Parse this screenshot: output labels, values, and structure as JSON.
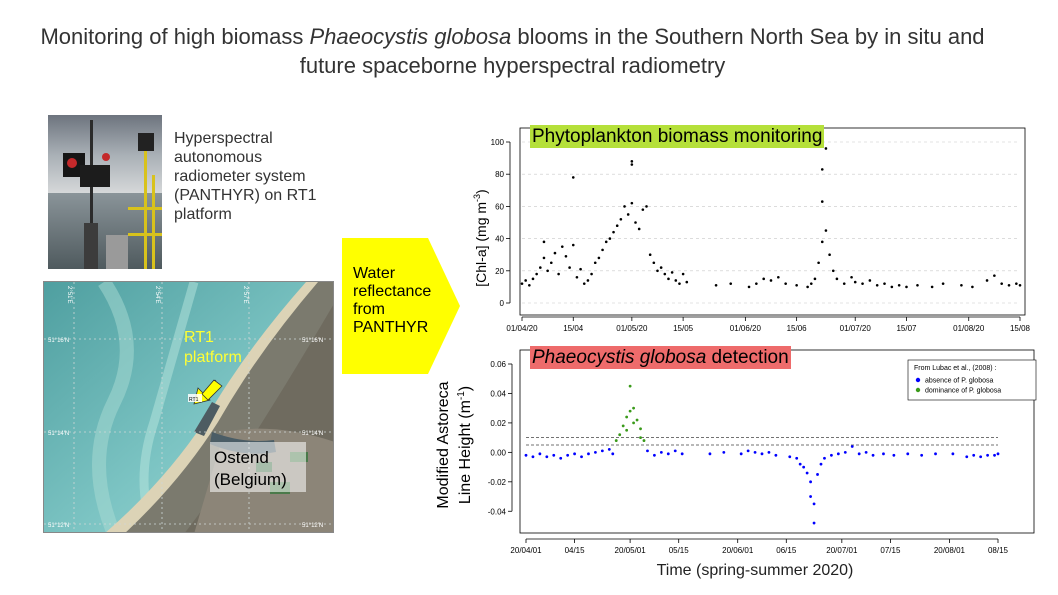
{
  "title": {
    "pre": "Monitoring of high biomass ",
    "italic": "Phaeocystis globosa",
    "post": " blooms in the Southern North Sea by in situ and future spaceborne hyperspectral radiometry"
  },
  "photo_caption": "Hyperspectral autonomous radiometer system (PANTHYR) on RT1 platform",
  "map": {
    "platform_label_1": "RT1",
    "platform_label_2": "platform",
    "city_label_1": "Ostend",
    "city_label_2": "(Belgium)",
    "rt1_marker": "RT1",
    "lon_labels": [
      "2°51'E",
      "2°54'E",
      "2°57'E"
    ],
    "lat_labels_left": [
      "51°16'N",
      "51°14'N",
      "51°12'N"
    ],
    "lat_labels_right": [
      "51°16'N",
      "51°14'N",
      "51°12'N"
    ]
  },
  "arrow_text": "Water reflectance from PANTHYR",
  "colors": {
    "chart1_title_bg": "#b5e03a",
    "chart2_title_bg": "#ee6b6b",
    "arrow": "#ffff00",
    "absence": "#0000ff",
    "dominance": "#3a9a1a"
  },
  "chart_data": [
    {
      "type": "scatter",
      "title": "Phytoplankton biomass monitoring",
      "ylabel": "[Chl-a] (mg m-3)",
      "ylabel_main": "[Chl-a] (mg m",
      "ylabel_sup": "-3",
      "ylabel_end": ")",
      "xlabel": "",
      "ylim": [
        0,
        100
      ],
      "yticks": [
        0,
        20,
        40,
        60,
        80,
        100
      ],
      "xlim": [
        "2020-04-01",
        "2020-08-15"
      ],
      "xticks": [
        {
          "x": "2020-04-01",
          "label": "01/04/20"
        },
        {
          "x": "2020-04-15",
          "label": "15/04"
        },
        {
          "x": "2020-05-01",
          "label": "01/05/20"
        },
        {
          "x": "2020-05-15",
          "label": "15/05"
        },
        {
          "x": "2020-06-01",
          "label": "01/06/20"
        },
        {
          "x": "2020-06-15",
          "label": "15/06"
        },
        {
          "x": "2020-07-01",
          "label": "01/07/20"
        },
        {
          "x": "2020-07-15",
          "label": "15/07"
        },
        {
          "x": "2020-08-01",
          "label": "01/08/20"
        },
        {
          "x": "2020-08-15",
          "label": "15/08"
        }
      ],
      "grid": true,
      "series": [
        {
          "color": "#000000",
          "points": [
            [
              "2020-04-01",
              12
            ],
            [
              "2020-04-02",
              14
            ],
            [
              "2020-04-03",
              11
            ],
            [
              "2020-04-04",
              15
            ],
            [
              "2020-04-05",
              18
            ],
            [
              "2020-04-06",
              22
            ],
            [
              "2020-04-07",
              28
            ],
            [
              "2020-04-07",
              38
            ],
            [
              "2020-04-08",
              20
            ],
            [
              "2020-04-09",
              25
            ],
            [
              "2020-04-10",
              31
            ],
            [
              "2020-04-11",
              18
            ],
            [
              "2020-04-12",
              35
            ],
            [
              "2020-04-13",
              29
            ],
            [
              "2020-04-14",
              22
            ],
            [
              "2020-04-15",
              36
            ],
            [
              "2020-04-15",
              78
            ],
            [
              "2020-04-16",
              16
            ],
            [
              "2020-04-17",
              21
            ],
            [
              "2020-04-18",
              12
            ],
            [
              "2020-04-19",
              14
            ],
            [
              "2020-04-20",
              18
            ],
            [
              "2020-04-21",
              25
            ],
            [
              "2020-04-22",
              28
            ],
            [
              "2020-04-23",
              33
            ],
            [
              "2020-04-24",
              38
            ],
            [
              "2020-04-25",
              40
            ],
            [
              "2020-04-26",
              44
            ],
            [
              "2020-04-27",
              48
            ],
            [
              "2020-04-28",
              52
            ],
            [
              "2020-04-29",
              60
            ],
            [
              "2020-04-30",
              55
            ],
            [
              "2020-05-01",
              62
            ],
            [
              "2020-05-01",
              86
            ],
            [
              "2020-05-01",
              88
            ],
            [
              "2020-05-02",
              50
            ],
            [
              "2020-05-03",
              46
            ],
            [
              "2020-05-04",
              58
            ],
            [
              "2020-05-05",
              60
            ],
            [
              "2020-05-06",
              30
            ],
            [
              "2020-05-07",
              25
            ],
            [
              "2020-05-08",
              20
            ],
            [
              "2020-05-09",
              22
            ],
            [
              "2020-05-10",
              18
            ],
            [
              "2020-05-11",
              15
            ],
            [
              "2020-05-12",
              19
            ],
            [
              "2020-05-13",
              14
            ],
            [
              "2020-05-14",
              12
            ],
            [
              "2020-05-15",
              18
            ],
            [
              "2020-05-16",
              13
            ],
            [
              "2020-05-24",
              11
            ],
            [
              "2020-05-28",
              12
            ],
            [
              "2020-06-02",
              10
            ],
            [
              "2020-06-04",
              12
            ],
            [
              "2020-06-06",
              15
            ],
            [
              "2020-06-08",
              14
            ],
            [
              "2020-06-10",
              16
            ],
            [
              "2020-06-12",
              12
            ],
            [
              "2020-06-15",
              11
            ],
            [
              "2020-06-18",
              10
            ],
            [
              "2020-06-19",
              12
            ],
            [
              "2020-06-20",
              15
            ],
            [
              "2020-06-21",
              25
            ],
            [
              "2020-06-22",
              38
            ],
            [
              "2020-06-22",
              63
            ],
            [
              "2020-06-22",
              83
            ],
            [
              "2020-06-23",
              96
            ],
            [
              "2020-06-23",
              45
            ],
            [
              "2020-06-24",
              30
            ],
            [
              "2020-06-25",
              20
            ],
            [
              "2020-06-26",
              15
            ],
            [
              "2020-06-28",
              12
            ],
            [
              "2020-06-30",
              16
            ],
            [
              "2020-07-01",
              13
            ],
            [
              "2020-07-03",
              12
            ],
            [
              "2020-07-05",
              14
            ],
            [
              "2020-07-07",
              11
            ],
            [
              "2020-07-09",
              12
            ],
            [
              "2020-07-11",
              10
            ],
            [
              "2020-07-13",
              11
            ],
            [
              "2020-07-15",
              10
            ],
            [
              "2020-07-18",
              11
            ],
            [
              "2020-07-22",
              10
            ],
            [
              "2020-07-25",
              12
            ],
            [
              "2020-07-30",
              11
            ],
            [
              "2020-08-02",
              10
            ],
            [
              "2020-08-06",
              14
            ],
            [
              "2020-08-08",
              17
            ],
            [
              "2020-08-10",
              12
            ],
            [
              "2020-08-12",
              11
            ],
            [
              "2020-08-14",
              12
            ],
            [
              "2020-08-15",
              11
            ]
          ]
        }
      ]
    },
    {
      "type": "scatter",
      "title": "Phaeocystis globosa detection",
      "title_italic": "Phaeocystis globosa",
      "title_rest": " detection",
      "ylabel_line1": "Modified Astoreca",
      "ylabel_line2_main": "Line Height (m",
      "ylabel_line2_sup": "-1",
      "ylabel_line2_end": ")",
      "xlabel": "Time (spring-summer 2020)",
      "ylim": [
        -0.05,
        0.06
      ],
      "yticks": [
        -0.04,
        -0.02,
        0.0,
        0.02,
        0.04,
        0.06
      ],
      "ytick_labels": [
        "-0.04",
        "-0.02",
        "0.00",
        "0.02",
        "0.04",
        "0.06"
      ],
      "xlim": [
        "2020-04-01",
        "2020-08-15"
      ],
      "xticks": [
        {
          "x": "2020-04-01",
          "label": "20/04/01"
        },
        {
          "x": "2020-04-15",
          "label": "04/15"
        },
        {
          "x": "2020-05-01",
          "label": "20/05/01"
        },
        {
          "x": "2020-05-15",
          "label": "05/15"
        },
        {
          "x": "2020-06-01",
          "label": "20/06/01"
        },
        {
          "x": "2020-06-15",
          "label": "06/15"
        },
        {
          "x": "2020-07-01",
          "label": "20/07/01"
        },
        {
          "x": "2020-07-15",
          "label": "07/15"
        },
        {
          "x": "2020-08-01",
          "label": "20/08/01"
        },
        {
          "x": "2020-08-15",
          "label": "08/15"
        }
      ],
      "thresholds": [
        0.005,
        0.01
      ],
      "legend": {
        "placement": "top-right",
        "title": "From Lubac et al., (2008) :",
        "entries": [
          "absence of P. globosa",
          "dominance of P. globosa"
        ]
      },
      "series": [
        {
          "name": "absence of P. globosa",
          "color": "#0000ff",
          "points": [
            [
              "2020-04-01",
              -0.002
            ],
            [
              "2020-04-03",
              -0.003
            ],
            [
              "2020-04-05",
              -0.001
            ],
            [
              "2020-04-07",
              -0.003
            ],
            [
              "2020-04-09",
              -0.002
            ],
            [
              "2020-04-11",
              -0.004
            ],
            [
              "2020-04-13",
              -0.002
            ],
            [
              "2020-04-15",
              -0.001
            ],
            [
              "2020-04-17",
              -0.003
            ],
            [
              "2020-04-19",
              -0.001
            ],
            [
              "2020-04-21",
              0.0
            ],
            [
              "2020-04-23",
              0.001
            ],
            [
              "2020-04-25",
              0.002
            ],
            [
              "2020-04-26",
              -0.001
            ],
            [
              "2020-05-06",
              0.001
            ],
            [
              "2020-05-08",
              -0.002
            ],
            [
              "2020-05-10",
              0.0
            ],
            [
              "2020-05-12",
              -0.001
            ],
            [
              "2020-05-14",
              0.001
            ],
            [
              "2020-05-16",
              -0.001
            ],
            [
              "2020-05-24",
              -0.001
            ],
            [
              "2020-05-28",
              0.0
            ],
            [
              "2020-06-02",
              -0.001
            ],
            [
              "2020-06-04",
              0.001
            ],
            [
              "2020-06-06",
              0.0
            ],
            [
              "2020-06-08",
              -0.001
            ],
            [
              "2020-06-10",
              0.0
            ],
            [
              "2020-06-12",
              -0.002
            ],
            [
              "2020-06-16",
              -0.003
            ],
            [
              "2020-06-18",
              -0.004
            ],
            [
              "2020-06-19",
              -0.008
            ],
            [
              "2020-06-20",
              -0.01
            ],
            [
              "2020-06-21",
              -0.014
            ],
            [
              "2020-06-22",
              -0.02
            ],
            [
              "2020-06-22",
              -0.03
            ],
            [
              "2020-06-23",
              -0.048
            ],
            [
              "2020-06-23",
              -0.035
            ],
            [
              "2020-06-24",
              -0.015
            ],
            [
              "2020-06-25",
              -0.008
            ],
            [
              "2020-06-26",
              -0.004
            ],
            [
              "2020-06-28",
              -0.002
            ],
            [
              "2020-06-30",
              -0.001
            ],
            [
              "2020-07-02",
              0.0
            ],
            [
              "2020-07-04",
              0.004
            ],
            [
              "2020-07-06",
              -0.001
            ],
            [
              "2020-07-08",
              0.0
            ],
            [
              "2020-07-10",
              -0.002
            ],
            [
              "2020-07-13",
              -0.001
            ],
            [
              "2020-07-16",
              -0.002
            ],
            [
              "2020-07-20",
              -0.001
            ],
            [
              "2020-07-24",
              -0.002
            ],
            [
              "2020-07-28",
              -0.001
            ],
            [
              "2020-08-02",
              -0.001
            ],
            [
              "2020-08-06",
              -0.003
            ],
            [
              "2020-08-08",
              -0.002
            ],
            [
              "2020-08-10",
              -0.003
            ],
            [
              "2020-08-12",
              -0.002
            ],
            [
              "2020-08-14",
              -0.002
            ],
            [
              "2020-08-15",
              -0.001
            ]
          ]
        },
        {
          "name": "dominance of P. globosa",
          "color": "#3a9a1a",
          "points": [
            [
              "2020-04-27",
              0.008
            ],
            [
              "2020-04-28",
              0.012
            ],
            [
              "2020-04-29",
              0.018
            ],
            [
              "2020-04-30",
              0.024
            ],
            [
              "2020-04-30",
              0.015
            ],
            [
              "2020-05-01",
              0.028
            ],
            [
              "2020-05-01",
              0.045
            ],
            [
              "2020-05-02",
              0.03
            ],
            [
              "2020-05-02",
              0.02
            ],
            [
              "2020-05-03",
              0.022
            ],
            [
              "2020-05-04",
              0.016
            ],
            [
              "2020-05-04",
              0.01
            ],
            [
              "2020-05-05",
              0.008
            ]
          ]
        }
      ]
    }
  ]
}
